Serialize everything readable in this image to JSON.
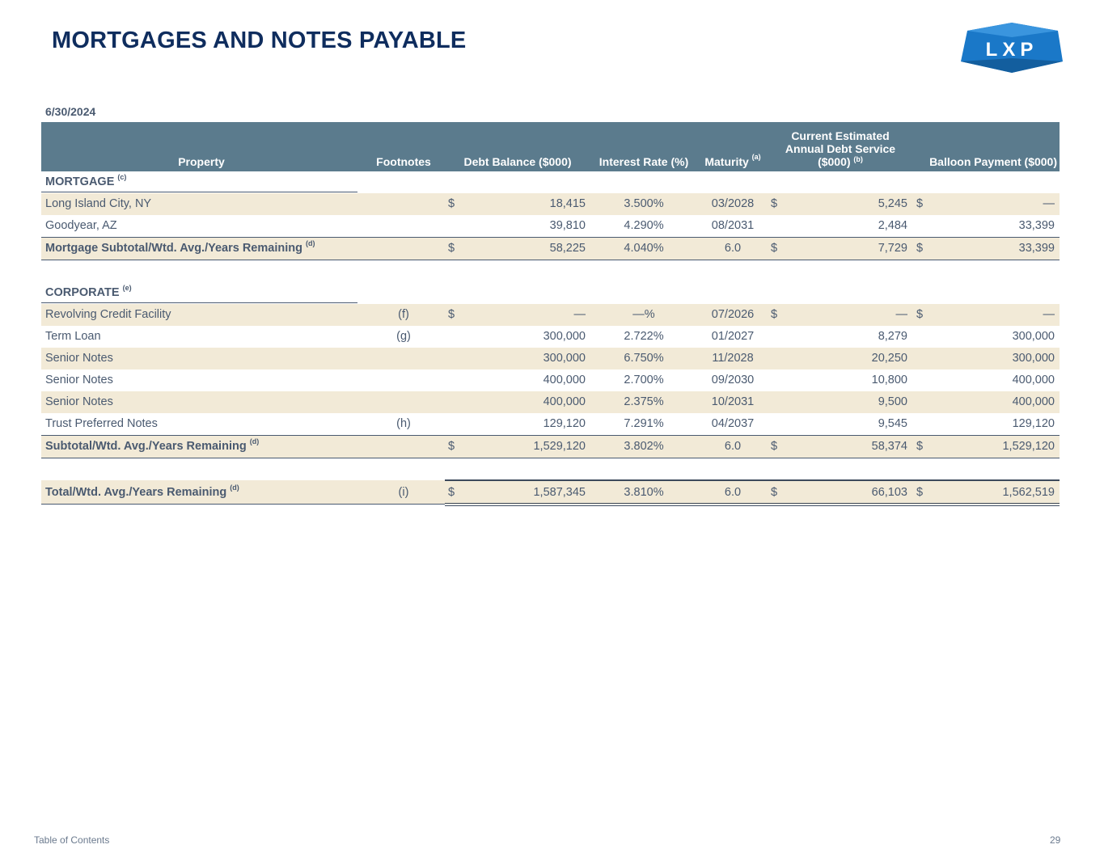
{
  "title": "MORTGAGES AND NOTES PAYABLE",
  "logo": {
    "text": "LXP",
    "color": "#1a78c8"
  },
  "date": "6/30/2024",
  "headers": {
    "property": "Property",
    "footnotes": "Footnotes",
    "debt_balance": "Debt Balance ($000)",
    "interest_rate": "Interest Rate (%)",
    "maturity": "Maturity",
    "maturity_sup": "(a)",
    "current_line1": "Current Estimated",
    "current_line2": "Annual Debt Service",
    "current_line3": "($000)",
    "current_sup": "(b)",
    "balloon": "Balloon Payment ($000)"
  },
  "mortgage": {
    "label": "MORTGAGE",
    "sup": "(c)",
    "rows": [
      {
        "name": "Long Island City, NY",
        "footnote": "",
        "ds1": "$",
        "debt": "18,415",
        "rate": "3.500%",
        "maturity": "03/2028",
        "ds2": "$",
        "current": "5,245",
        "ds3": "$",
        "balloon": "—"
      },
      {
        "name": "Goodyear, AZ",
        "footnote": "",
        "ds1": "",
        "debt": "39,810",
        "rate": "4.290%",
        "maturity": "08/2031",
        "ds2": "",
        "current": "2,484",
        "ds3": "",
        "balloon": "33,399"
      }
    ],
    "subtotal": {
      "name": "Mortgage Subtotal/Wtd. Avg./Years Remaining",
      "sup": "(d)",
      "ds1": "$",
      "debt": "58,225",
      "rate": "4.040%",
      "maturity": "6.0",
      "ds2": "$",
      "current": "7,729",
      "ds3": "$",
      "balloon": "33,399"
    }
  },
  "corporate": {
    "label": "CORPORATE",
    "sup": "(e)",
    "rows": [
      {
        "name": "Revolving Credit Facility",
        "footnote": "(f)",
        "ds1": "$",
        "debt": "—",
        "rate": "—%",
        "maturity": "07/2026",
        "ds2": "$",
        "current": "—",
        "ds3": "$",
        "balloon": "—"
      },
      {
        "name": "Term Loan",
        "footnote": "(g)",
        "ds1": "",
        "debt": "300,000",
        "rate": "2.722%",
        "maturity": "01/2027",
        "ds2": "",
        "current": "8,279",
        "ds3": "",
        "balloon": "300,000"
      },
      {
        "name": "Senior Notes",
        "footnote": "",
        "ds1": "",
        "debt": "300,000",
        "rate": "6.750%",
        "maturity": "11/2028",
        "ds2": "",
        "current": "20,250",
        "ds3": "",
        "balloon": "300,000"
      },
      {
        "name": "Senior Notes",
        "footnote": "",
        "ds1": "",
        "debt": "400,000",
        "rate": "2.700%",
        "maturity": "09/2030",
        "ds2": "",
        "current": "10,800",
        "ds3": "",
        "balloon": "400,000"
      },
      {
        "name": "Senior Notes",
        "footnote": "",
        "ds1": "",
        "debt": "400,000",
        "rate": "2.375%",
        "maturity": "10/2031",
        "ds2": "",
        "current": "9,500",
        "ds3": "",
        "balloon": "400,000"
      },
      {
        "name": "Trust Preferred Notes",
        "footnote": "(h)",
        "ds1": "",
        "debt": "129,120",
        "rate": "7.291%",
        "maturity": "04/2037",
        "ds2": "",
        "current": "9,545",
        "ds3": "",
        "balloon": "129,120"
      }
    ],
    "subtotal": {
      "name": "Subtotal/Wtd. Avg./Years Remaining",
      "sup": "(d)",
      "ds1": "$",
      "debt": "1,529,120",
      "rate": "3.802%",
      "maturity": "6.0",
      "ds2": "$",
      "current": "58,374",
      "ds3": "$",
      "balloon": "1,529,120"
    }
  },
  "total": {
    "name": "Total/Wtd. Avg./Years Remaining",
    "sup": "(d)",
    "footnote": "(i)",
    "ds1": "$",
    "debt": "1,587,345",
    "rate": "3.810%",
    "maturity": "6.0",
    "ds2": "$",
    "current": "66,103",
    "ds3": "$",
    "balloon": "1,562,519"
  },
  "footer": {
    "toc": "Table of Contents",
    "page": "29"
  }
}
